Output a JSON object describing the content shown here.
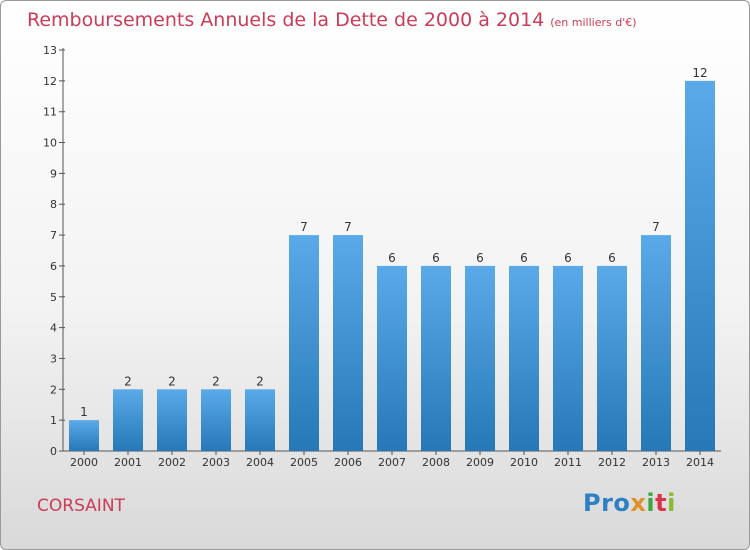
{
  "title": "Remboursements Annuels de la Dette de 2000 à 2014",
  "unit": "(en milliers d'€)",
  "commune": "CORSAINT",
  "logo": {
    "p1": "Pro",
    "p2": "x",
    "p3": "i",
    "p4": "t",
    "p5": "i"
  },
  "colors": {
    "bar_light": "#5aaaea",
    "bar_dark": "#2678b6",
    "title": "#cc3b57"
  },
  "chart_data": {
    "type": "bar",
    "title": "Remboursements Annuels de la Dette de 2000 à 2014",
    "ylabel": "",
    "xlabel": "",
    "categories": [
      "2000",
      "2001",
      "2002",
      "2003",
      "2004",
      "2005",
      "2006",
      "2007",
      "2008",
      "2009",
      "2010",
      "2011",
      "2012",
      "2013",
      "2014"
    ],
    "values": [
      1,
      2,
      2,
      2,
      2,
      7,
      7,
      6,
      6,
      6,
      6,
      6,
      6,
      7,
      12
    ],
    "ylim": [
      0,
      13
    ],
    "yticks": [
      0,
      1,
      2,
      3,
      4,
      5,
      6,
      7,
      8,
      9,
      10,
      11,
      12,
      13
    ],
    "grid": false
  }
}
